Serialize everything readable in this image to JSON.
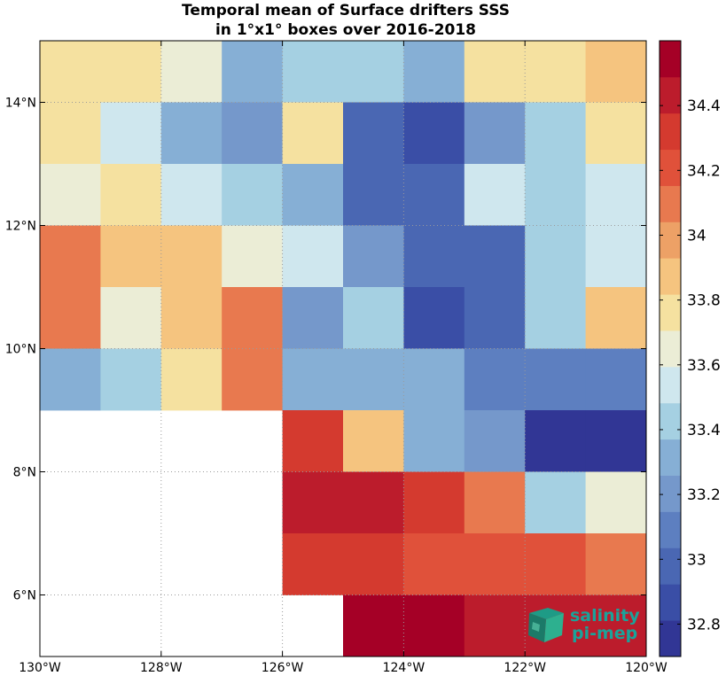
{
  "chart_data": {
    "type": "heatmap",
    "title_lines": [
      "Temporal mean of Surface drifters SSS",
      "in 1°x1° boxes over 2016-2018"
    ],
    "x_range": [
      -130,
      -120
    ],
    "y_range": [
      5,
      15
    ],
    "x_ticks": [
      {
        "value": -130,
        "label": "130°W"
      },
      {
        "value": -128,
        "label": "128°W"
      },
      {
        "value": -126,
        "label": "126°W"
      },
      {
        "value": -124,
        "label": "124°W"
      },
      {
        "value": -122,
        "label": "122°W"
      },
      {
        "value": -120,
        "label": "120°W"
      }
    ],
    "y_ticks": [
      {
        "value": 6,
        "label": "6°N"
      },
      {
        "value": 8,
        "label": "8°N"
      },
      {
        "value": 10,
        "label": "10°N"
      },
      {
        "value": 12,
        "label": "12°N"
      },
      {
        "value": 14,
        "label": "14°N"
      }
    ],
    "grid": true,
    "grid_style": "dotted",
    "lon_centers": [
      -129.5,
      -128.5,
      -127.5,
      -126.5,
      -125.5,
      -124.5,
      -123.5,
      -122.5,
      -121.5,
      -120.5
    ],
    "lat_centers": [
      14.5,
      13.5,
      12.5,
      11.5,
      10.5,
      9.5,
      8.5,
      7.5,
      6.5,
      5.5
    ],
    "values": [
      [
        33.75,
        33.75,
        33.7,
        33.35,
        33.4,
        33.45,
        33.35,
        33.75,
        33.75,
        33.85
      ],
      [
        33.75,
        33.55,
        33.35,
        33.15,
        33.75,
        33.0,
        32.85,
        33.15,
        33.4,
        33.75
      ],
      [
        33.7,
        33.75,
        33.55,
        33.45,
        33.35,
        32.95,
        32.95,
        33.55,
        33.4,
        33.55
      ],
      [
        34.05,
        33.85,
        33.85,
        33.7,
        33.55,
        33.25,
        33.0,
        33.0,
        33.4,
        33.55
      ],
      [
        34.15,
        33.7,
        33.85,
        34.05,
        33.25,
        33.4,
        32.85,
        33.0,
        33.45,
        33.85
      ],
      [
        33.3,
        33.4,
        33.75,
        34.05,
        33.35,
        33.3,
        33.3,
        33.1,
        33.1,
        33.05
      ],
      [
        null,
        null,
        null,
        null,
        34.35,
        33.85,
        33.3,
        33.15,
        32.8,
        32.8
      ],
      [
        null,
        null,
        null,
        null,
        34.45,
        34.45,
        34.35,
        34.05,
        33.4,
        33.7
      ],
      [
        null,
        null,
        null,
        null,
        34.35,
        34.3,
        34.25,
        34.25,
        34.25,
        34.15
      ],
      [
        null,
        null,
        null,
        null,
        null,
        34.55,
        34.55,
        34.4,
        34.45,
        34.45
      ]
    ],
    "colorbar": {
      "range": [
        32.7,
        34.6
      ],
      "ticks": [
        32.8,
        33,
        33.2,
        33.4,
        33.6,
        33.8,
        34,
        34.2,
        34.4
      ],
      "tick_labels": [
        "32.8",
        "33",
        "33.2",
        "33.4",
        "33.6",
        "33.8",
        "34",
        "34.2",
        "34.4"
      ],
      "colors": [
        "#313695",
        "#3a4ea6",
        "#4a67b3",
        "#5d7fc0",
        "#7598cb",
        "#86afd5",
        "#a5d0e2",
        "#cfe7ee",
        "#ebedd6",
        "#f5e1a0",
        "#f5c47f",
        "#eda166",
        "#e8794f",
        "#e0513a",
        "#d43a2f",
        "#bc1c2c",
        "#a50026"
      ]
    }
  },
  "logo": {
    "line1": "salinity",
    "line2": "pi-mep"
  }
}
